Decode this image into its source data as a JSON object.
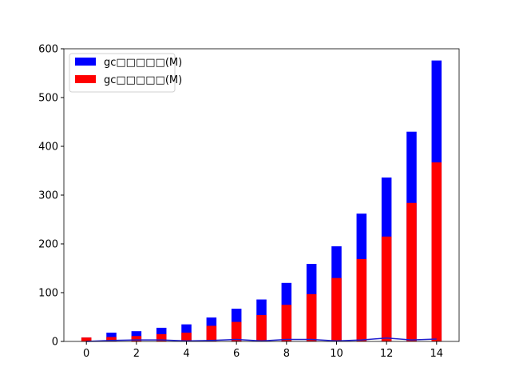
{
  "chart_data": {
    "type": "bar",
    "x": [
      0,
      1,
      2,
      3,
      4,
      5,
      6,
      7,
      8,
      9,
      10,
      11,
      12,
      13,
      14
    ],
    "series": [
      {
        "name": "gc□□□□□(M)",
        "color": "#0000ff",
        "values": [
          8,
          18,
          21,
          28,
          35,
          49,
          67,
          86,
          120,
          159,
          195,
          262,
          336,
          430,
          576
        ]
      },
      {
        "name": "gc□□□□□(M)",
        "color": "#ff0000",
        "values": [
          8,
          9,
          11,
          15,
          18,
          32,
          40,
          54,
          75,
          97,
          130,
          169,
          215,
          284,
          367
        ]
      }
    ],
    "lines": [
      {
        "color": "#2020d0",
        "values": [
          0,
          2,
          3,
          3,
          1,
          2,
          4,
          1,
          4,
          4,
          1,
          3,
          7,
          3,
          5
        ]
      }
    ],
    "bar_width": 0.4,
    "xlim": [
      -0.9,
      14.9
    ],
    "xticks": [
      0,
      2,
      4,
      6,
      8,
      10,
      12,
      14
    ],
    "ylim": [
      0,
      600
    ],
    "yticks": [
      0,
      100,
      200,
      300,
      400,
      500,
      600
    ],
    "legend": "upper left"
  }
}
